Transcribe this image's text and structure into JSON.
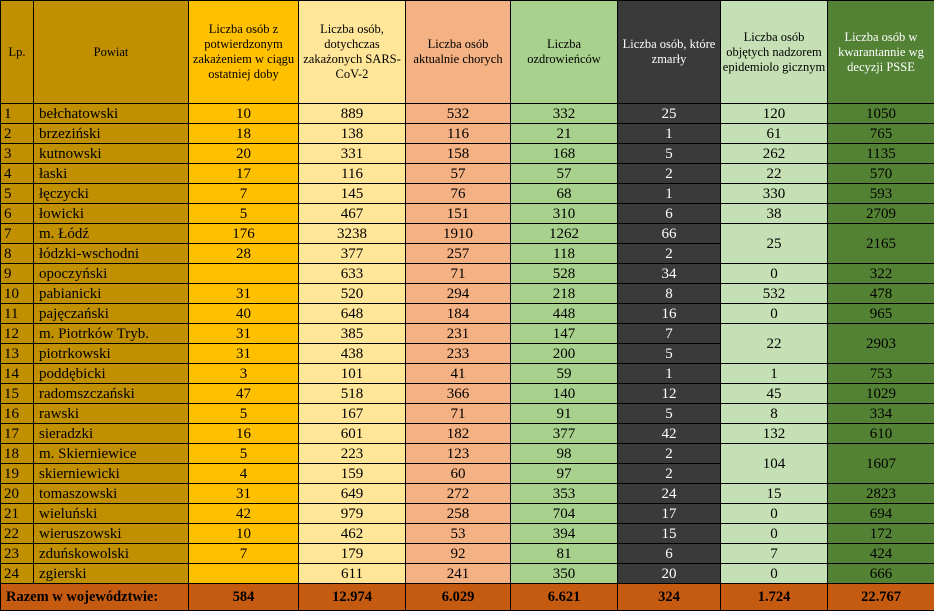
{
  "headers": [
    "Lp.",
    "Powiat",
    "Liczba osób z potwierdzonym zakażeniem w ciągu ostatniej doby",
    "Liczba osób, dotychczas zakażonych SARS-CoV-2",
    "Liczba osób aktualnie chorych",
    "Liczba ozdrowieńców",
    "Liczba osób, które zmarły",
    "Liczba osób objętych nadzorem epidemiolo gicznym",
    "Liczba osób w kwarantannie wg decyzji PSSE"
  ],
  "rows": [
    {
      "lp": "1",
      "powiat": "bełchatowski",
      "doba": "10",
      "zakazonych": "889",
      "chorych": "532",
      "ozdrowiency": "332",
      "zmarly": "25",
      "nadzor": "120",
      "kwarantanna": "1050"
    },
    {
      "lp": "2",
      "powiat": "brzeziński",
      "doba": "18",
      "zakazonych": "138",
      "chorych": "116",
      "ozdrowiency": "21",
      "zmarly": "1",
      "nadzor": "61",
      "kwarantanna": "765"
    },
    {
      "lp": "3",
      "powiat": "kutnowski",
      "doba": "20",
      "zakazonych": "331",
      "chorych": "158",
      "ozdrowiency": "168",
      "zmarly": "5",
      "nadzor": "262",
      "kwarantanna": "1135"
    },
    {
      "lp": "4",
      "powiat": "łaski",
      "doba": "17",
      "zakazonych": "116",
      "chorych": "57",
      "ozdrowiency": "57",
      "zmarly": "2",
      "nadzor": "22",
      "kwarantanna": "570"
    },
    {
      "lp": "5",
      "powiat": "łęczycki",
      "doba": "7",
      "zakazonych": "145",
      "chorych": "76",
      "ozdrowiency": "68",
      "zmarly": "1",
      "nadzor": "330",
      "kwarantanna": "593"
    },
    {
      "lp": "6",
      "powiat": "łowicki",
      "doba": "5",
      "zakazonych": "467",
      "chorych": "151",
      "ozdrowiency": "310",
      "zmarly": "6",
      "nadzor": "38",
      "kwarantanna": "2709"
    },
    {
      "lp": "7",
      "powiat": "m. Łódź",
      "doba": "176",
      "zakazonych": "3238",
      "chorych": "1910",
      "ozdrowiency": "1262",
      "zmarly": "66"
    },
    {
      "lp": "8",
      "powiat": "łódzki-wschodni",
      "doba": "28",
      "zakazonych": "377",
      "chorych": "257",
      "ozdrowiency": "118",
      "zmarly": "2"
    },
    {
      "lp": "9",
      "powiat": "opoczyński",
      "doba": "",
      "zakazonych": "633",
      "chorych": "71",
      "ozdrowiency": "528",
      "zmarly": "34",
      "nadzor": "0",
      "kwarantanna": "322"
    },
    {
      "lp": "10",
      "powiat": "pabianicki",
      "doba": "31",
      "zakazonych": "520",
      "chorych": "294",
      "ozdrowiency": "218",
      "zmarly": "8",
      "nadzor": "532",
      "kwarantanna": "478"
    },
    {
      "lp": "11",
      "powiat": "pajęczański",
      "doba": "40",
      "zakazonych": "648",
      "chorych": "184",
      "ozdrowiency": "448",
      "zmarly": "16",
      "nadzor": "0",
      "kwarantanna": "965"
    },
    {
      "lp": "12",
      "powiat": "m. Piotrków Tryb.",
      "doba": "31",
      "zakazonych": "385",
      "chorych": "231",
      "ozdrowiency": "147",
      "zmarly": "7"
    },
    {
      "lp": "13",
      "powiat": "piotrkowski",
      "doba": "31",
      "zakazonych": "438",
      "chorych": "233",
      "ozdrowiency": "200",
      "zmarly": "5"
    },
    {
      "lp": "14",
      "powiat": "poddębicki",
      "doba": "3",
      "zakazonych": "101",
      "chorych": "41",
      "ozdrowiency": "59",
      "zmarly": "1",
      "nadzor": "1",
      "kwarantanna": "753"
    },
    {
      "lp": "15",
      "powiat": "radomszczański",
      "doba": "47",
      "zakazonych": "518",
      "chorych": "366",
      "ozdrowiency": "140",
      "zmarly": "12",
      "nadzor": "45",
      "kwarantanna": "1029"
    },
    {
      "lp": "16",
      "powiat": "rawski",
      "doba": "5",
      "zakazonych": "167",
      "chorych": "71",
      "ozdrowiency": "91",
      "zmarly": "5",
      "nadzor": "8",
      "kwarantanna": "334"
    },
    {
      "lp": "17",
      "powiat": "sieradzki",
      "doba": "16",
      "zakazonych": "601",
      "chorych": "182",
      "ozdrowiency": "377",
      "zmarly": "42",
      "nadzor": "132",
      "kwarantanna": "610"
    },
    {
      "lp": "18",
      "powiat": "m. Skierniewice",
      "doba": "5",
      "zakazonych": "223",
      "chorych": "123",
      "ozdrowiency": "98",
      "zmarly": "2"
    },
    {
      "lp": "19",
      "powiat": "skierniewicki",
      "doba": "4",
      "zakazonych": "159",
      "chorych": "60",
      "ozdrowiency": "97",
      "zmarly": "2"
    },
    {
      "lp": "20",
      "powiat": "tomaszowski",
      "doba": "31",
      "zakazonych": "649",
      "chorych": "272",
      "ozdrowiency": "353",
      "zmarly": "24",
      "nadzor": "15",
      "kwarantanna": "2823"
    },
    {
      "lp": "21",
      "powiat": "wieluński",
      "doba": "42",
      "zakazonych": "979",
      "chorych": "258",
      "ozdrowiency": "704",
      "zmarly": "17",
      "nadzor": "0",
      "kwarantanna": "694"
    },
    {
      "lp": "22",
      "powiat": "wieruszowski",
      "doba": "10",
      "zakazonych": "462",
      "chorych": "53",
      "ozdrowiency": "394",
      "zmarly": "15",
      "nadzor": "0",
      "kwarantanna": "172"
    },
    {
      "lp": "23",
      "powiat": "zduńskowolski",
      "doba": "7",
      "zakazonych": "179",
      "chorych": "92",
      "ozdrowiency": "81",
      "zmarly": "6",
      "nadzor": "7",
      "kwarantanna": "424"
    },
    {
      "lp": "24",
      "powiat": "zgierski",
      "doba": "",
      "zakazonych": "611",
      "chorych": "241",
      "ozdrowiency": "350",
      "zmarly": "20",
      "nadzor": "0",
      "kwarantanna": "666"
    }
  ],
  "merged": {
    "lodz": {
      "nadzor": "25",
      "kwarantanna": "2165"
    },
    "piotrkow": {
      "nadzor": "22",
      "kwarantanna": "2903"
    },
    "skierniewice": {
      "nadzor": "104",
      "kwarantanna": "1607"
    }
  },
  "totals": {
    "label": "Razem w województwie:",
    "doba": "584",
    "zakazonych": "12.974",
    "chorych": "6.029",
    "ozdrowiency": "6.621",
    "zmarly": "324",
    "nadzor": "1.724",
    "kwarantanna": "22.767"
  },
  "colors": {
    "powiat": "#c09000",
    "doba": "#ffc000",
    "zakazonych": "#ffe699",
    "chorych": "#f4b183",
    "ozdrowiency": "#a9d18e",
    "zmarly": "#3a3a3a",
    "nadzor": "#c5e0b4",
    "kwarantanna": "#548235",
    "totals": "#c55a11"
  }
}
